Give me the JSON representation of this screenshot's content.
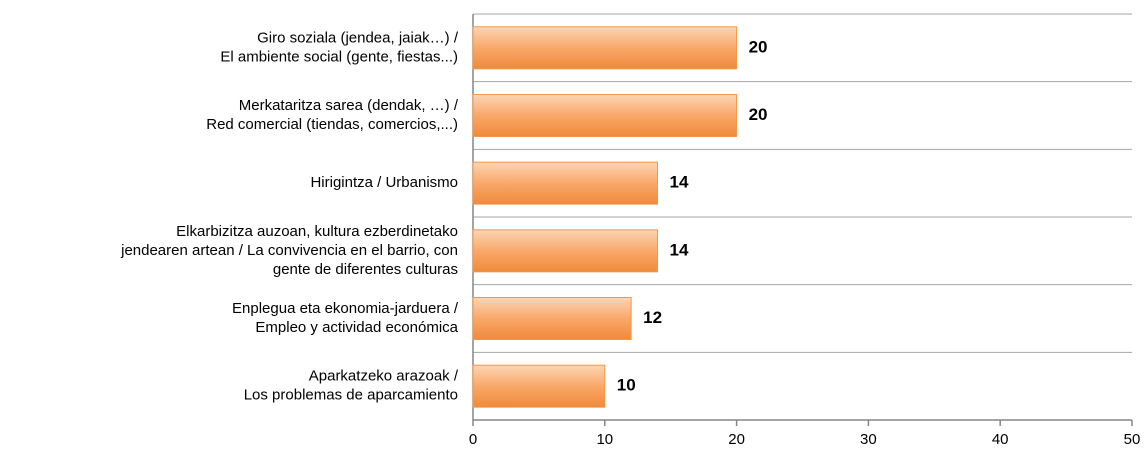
{
  "chart_data": {
    "type": "barh",
    "categories": [
      "Giro soziala (jendea, jaiak…) /\nEl ambiente social (gente, fiestas...)",
      "Merkataritza sarea (dendak, …) /\nRed comercial (tiendas, comercios,...)",
      "Hirigintza / Urbanismo",
      "Elkarbizitza auzoan, kultura ezberdinetako\njendearen artean / La convivencia en el barrio, con\ngente de diferentes culturas",
      "Enplegua eta ekonomia-jarduera /\nEmpleo y actividad económica",
      "Aparkatzeko arazoak /\nLos problemas de aparcamiento"
    ],
    "values": [
      20,
      20,
      14,
      14,
      12,
      10
    ],
    "color": "#f79646",
    "xlim": [
      0,
      50
    ],
    "xticks": [
      0,
      10,
      20,
      30,
      40,
      50
    ],
    "grid": true
  }
}
